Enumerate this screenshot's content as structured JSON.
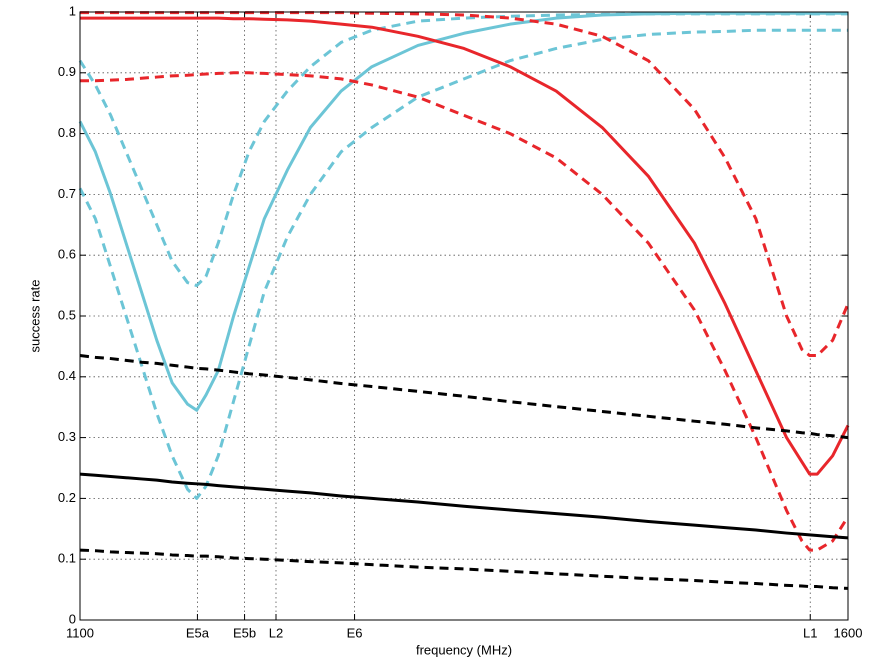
{
  "chart_data": {
    "type": "line",
    "xlabel": "frequency (MHz)",
    "ylabel": "success rate",
    "x": [
      1100,
      1110,
      1120,
      1130,
      1140,
      1150,
      1160,
      1170,
      1176,
      1182,
      1190,
      1200,
      1210,
      1220,
      1235,
      1250,
      1270,
      1290,
      1320,
      1350,
      1380,
      1410,
      1440,
      1470,
      1500,
      1520,
      1540,
      1560,
      1570,
      1575,
      1580,
      1590,
      1600
    ],
    "xlim": [
      1100,
      1600
    ],
    "xticks": [
      1100,
      {
        "value": 1176.45,
        "label": "E5a"
      },
      {
        "value": 1207.14,
        "label": "E5b"
      },
      {
        "value": 1227.6,
        "label": "L2"
      },
      {
        "value": 1278.75,
        "label": "E6"
      },
      {
        "value": 1575.42,
        "label": "L1"
      },
      1600
    ],
    "ylim": [
      0,
      1
    ],
    "yticks": [
      0,
      0.1,
      0.2,
      0.3,
      0.4,
      0.5,
      0.6,
      0.7,
      0.8,
      0.9,
      1
    ],
    "grid": true,
    "series": [
      {
        "color": "#6cc5d6",
        "dashed": false,
        "values": [
          0.82,
          0.77,
          0.7,
          0.62,
          0.54,
          0.46,
          0.39,
          0.355,
          0.345,
          0.37,
          0.41,
          0.5,
          0.58,
          0.66,
          0.74,
          0.81,
          0.87,
          0.91,
          0.945,
          0.965,
          0.98,
          0.99,
          0.995,
          0.997,
          0.998,
          0.998,
          0.998,
          0.998,
          0.998,
          0.998,
          0.998,
          0.998,
          0.998
        ]
      },
      {
        "color": "#6cc5d6",
        "dashed": true,
        "values": [
          0.92,
          0.88,
          0.83,
          0.77,
          0.71,
          0.65,
          0.59,
          0.555,
          0.55,
          0.565,
          0.62,
          0.7,
          0.77,
          0.82,
          0.87,
          0.91,
          0.95,
          0.97,
          0.985,
          0.99,
          0.993,
          0.995,
          0.996,
          0.997,
          0.997,
          0.997,
          0.997,
          0.997,
          0.997,
          0.997,
          0.997,
          0.997,
          0.997
        ]
      },
      {
        "color": "#6cc5d6",
        "dashed": true,
        "values": [
          0.71,
          0.66,
          0.58,
          0.5,
          0.42,
          0.34,
          0.27,
          0.215,
          0.2,
          0.22,
          0.27,
          0.36,
          0.45,
          0.54,
          0.63,
          0.7,
          0.77,
          0.81,
          0.86,
          0.89,
          0.92,
          0.94,
          0.955,
          0.963,
          0.967,
          0.968,
          0.97,
          0.97,
          0.97,
          0.97,
          0.97,
          0.97,
          0.97
        ]
      },
      {
        "color": "#e8262b",
        "dashed": false,
        "values": [
          0.99,
          0.99,
          0.99,
          0.99,
          0.99,
          0.99,
          0.99,
          0.99,
          0.99,
          0.99,
          0.99,
          0.989,
          0.989,
          0.988,
          0.987,
          0.985,
          0.98,
          0.975,
          0.96,
          0.94,
          0.91,
          0.87,
          0.81,
          0.73,
          0.62,
          0.52,
          0.41,
          0.3,
          0.26,
          0.24,
          0.24,
          0.27,
          0.32
        ]
      },
      {
        "color": "#e8262b",
        "dashed": true,
        "values": [
          0.999,
          0.999,
          0.999,
          0.999,
          0.999,
          0.999,
          0.999,
          0.999,
          0.999,
          0.999,
          0.999,
          0.999,
          0.999,
          0.999,
          0.999,
          0.999,
          0.999,
          0.998,
          0.997,
          0.995,
          0.99,
          0.98,
          0.96,
          0.92,
          0.84,
          0.76,
          0.66,
          0.5,
          0.445,
          0.435,
          0.435,
          0.46,
          0.52
        ]
      },
      {
        "color": "#e8262b",
        "dashed": true,
        "values": [
          0.887,
          0.887,
          0.888,
          0.889,
          0.891,
          0.893,
          0.895,
          0.896,
          0.897,
          0.898,
          0.899,
          0.9,
          0.9,
          0.899,
          0.897,
          0.895,
          0.89,
          0.88,
          0.86,
          0.83,
          0.8,
          0.76,
          0.7,
          0.62,
          0.51,
          0.41,
          0.3,
          0.18,
          0.13,
          0.115,
          0.115,
          0.13,
          0.17
        ]
      },
      {
        "color": "#000000",
        "dashed": false,
        "values": [
          0.24,
          0.238,
          0.236,
          0.234,
          0.232,
          0.23,
          0.227,
          0.225,
          0.224,
          0.223,
          0.221,
          0.219,
          0.217,
          0.215,
          0.212,
          0.209,
          0.204,
          0.2,
          0.194,
          0.187,
          0.181,
          0.175,
          0.169,
          0.162,
          0.156,
          0.152,
          0.148,
          0.143,
          0.141,
          0.14,
          0.139,
          0.137,
          0.135
        ]
      },
      {
        "color": "#000000",
        "dashed": true,
        "values": [
          0.435,
          0.432,
          0.43,
          0.427,
          0.424,
          0.422,
          0.419,
          0.416,
          0.414,
          0.413,
          0.411,
          0.408,
          0.405,
          0.403,
          0.399,
          0.395,
          0.389,
          0.384,
          0.376,
          0.368,
          0.359,
          0.351,
          0.343,
          0.335,
          0.327,
          0.322,
          0.316,
          0.311,
          0.308,
          0.307,
          0.305,
          0.303,
          0.3
        ]
      },
      {
        "color": "#000000",
        "dashed": true,
        "values": [
          0.115,
          0.114,
          0.112,
          0.111,
          0.11,
          0.109,
          0.107,
          0.106,
          0.105,
          0.105,
          0.104,
          0.102,
          0.101,
          0.1,
          0.098,
          0.096,
          0.094,
          0.091,
          0.087,
          0.084,
          0.08,
          0.076,
          0.072,
          0.068,
          0.065,
          0.062,
          0.06,
          0.057,
          0.056,
          0.055,
          0.055,
          0.053,
          0.052
        ]
      }
    ]
  }
}
